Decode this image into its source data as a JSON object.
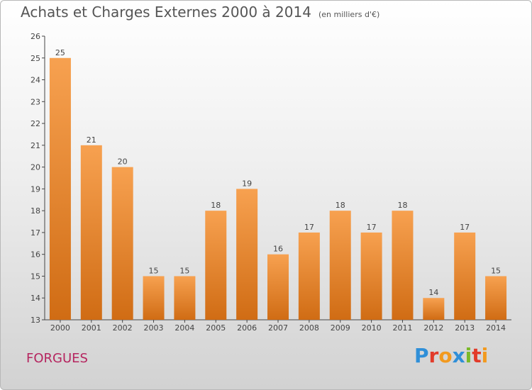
{
  "header": {
    "title": "Achats et Charges Externes 2000 à 2014",
    "unit": "(en milliers d'€)"
  },
  "footer": {
    "commune": "FORGUES",
    "brand": "Proxiti"
  },
  "colors": {
    "bar_top": "#f7a150",
    "bar_bottom": "#d06c14",
    "axis": "#444444",
    "commune": "#b5255f"
  },
  "chart_data": {
    "type": "bar",
    "title": "Achats et Charges Externes 2000 à 2014",
    "subtitle": "(en milliers d'€)",
    "categories": [
      "2000",
      "2001",
      "2002",
      "2003",
      "2004",
      "2005",
      "2006",
      "2007",
      "2008",
      "2009",
      "2010",
      "2011",
      "2012",
      "2013",
      "2014"
    ],
    "values": [
      25,
      21,
      20,
      15,
      15,
      18,
      19,
      16,
      17,
      18,
      17,
      18,
      14,
      17,
      15
    ],
    "ylim": [
      13,
      26
    ],
    "yticks": [
      13,
      14,
      15,
      16,
      17,
      18,
      19,
      20,
      21,
      22,
      23,
      24,
      25,
      26
    ],
    "grid": false,
    "data_labels": true
  }
}
